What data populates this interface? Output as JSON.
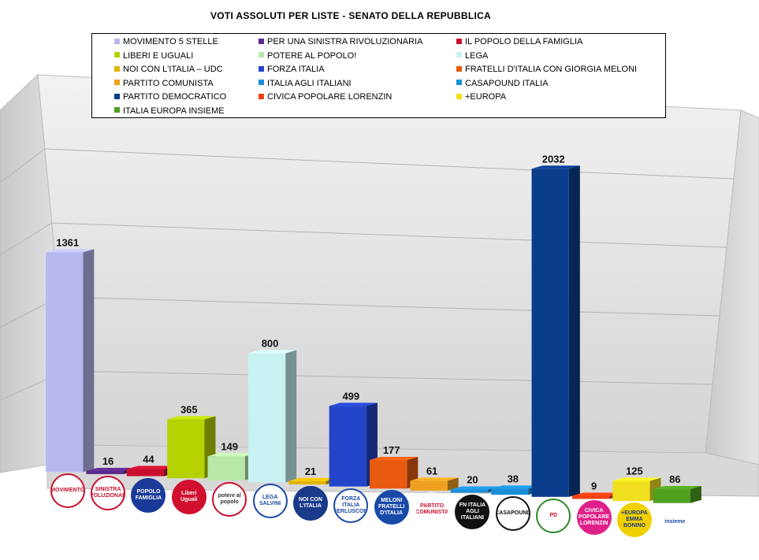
{
  "chart_data": {
    "type": "bar",
    "title": "VOTI ASSOLUTI PER LISTE - SENATO DELLA REPUBBLICA",
    "categories": [
      "MOVIMENTO 5 STELLE",
      "PER UNA SINISTRA RIVOLUZIONARIA",
      "IL POPOLO DELLA FAMIGLIA",
      "LIBERI E UGUALI",
      "POTERE AL POPOLO!",
      "LEGA",
      "NOI CON L'ITALIA – UDC",
      "FORZA ITALIA",
      "FRATELLI D'ITALIA CON GIORGIA MELONI",
      "PARTITO COMUNISTA",
      "ITALIA AGLI ITALIANI",
      "CASAPOUND ITALIA",
      "PARTITO DEMOCRATICO",
      "CIVICA POPOLARE LORENZIN",
      "+EUROPA",
      "ITALIA EUROPA INSIEME"
    ],
    "values": [
      1361,
      16,
      44,
      365,
      149,
      800,
      21,
      499,
      177,
      61,
      20,
      38,
      2032,
      9,
      125,
      86
    ],
    "colors": [
      "#b8b8f0",
      "#5a2a8a",
      "#c8102e",
      "#b5d200",
      "#b8e8a8",
      "#c8f2f2",
      "#e0b400",
      "#2244c8",
      "#e85a10",
      "#f0a020",
      "#1f8fd8",
      "#1a8fd8",
      "#0a3c8c",
      "#f04010",
      "#f0e020",
      "#50a020"
    ],
    "ylim": [
      0,
      2500
    ],
    "grid": true,
    "legend": "top"
  },
  "legend_items": [
    "MOVIMENTO 5 STELLE",
    "PER UNA SINISTRA RIVOLUZIONARIA",
    "IL POPOLO DELLA FAMIGLIA",
    "LIBERI E UGUALI",
    "POTERE AL POPOLO!",
    "LEGA",
    "NOI CON L'ITALIA – UDC",
    "FORZA ITALIA",
    "FRATELLI D'ITALIA CON GIORGIA MELONI",
    "PARTITO COMUNISTA",
    "ITALIA AGLI ITALIANI",
    "CASAPOUND ITALIA",
    "PARTITO DEMOCRATICO",
    "CIVICA POPOLARE LORENZIN",
    "+EUROPA",
    "ITALIA EUROPA INSIEME"
  ],
  "logos": [
    {
      "text": "MOVIMENTO",
      "bg": "#ffffff",
      "fg": "#c8102e",
      "border": "#c8102e"
    },
    {
      "text": "SINISTRA RIVOLUZIONARIA",
      "bg": "#ffffff",
      "fg": "#c8102e",
      "border": "#c8102e"
    },
    {
      "text": "POPOLO FAMIGLIA",
      "bg": "#1a3a9a",
      "fg": "#ffffff",
      "border": "#1a3a9a"
    },
    {
      "text": "Liberi Uguali",
      "bg": "#d0102e",
      "fg": "#ffffff",
      "border": "#d0102e"
    },
    {
      "text": "potere al popolo",
      "bg": "#ffffff",
      "fg": "#333333",
      "border": "#c8102e"
    },
    {
      "text": "LEGA SALVINI",
      "bg": "#ffffff",
      "fg": "#1a4aa8",
      "border": "#1a4aa8"
    },
    {
      "text": "NOI CON L'ITALIA",
      "bg": "#1a3a8a",
      "fg": "#ffffff",
      "border": "#1a3a8a"
    },
    {
      "text": "FORZA ITALIA BERLUSCONI",
      "bg": "#ffffff",
      "fg": "#1a4aa8",
      "border": "#1a4aa8"
    },
    {
      "text": "MELONI FRATELLI D'ITALIA",
      "bg": "#1a4aa8",
      "fg": "#ffffff",
      "border": "#1a4aa8"
    },
    {
      "text": "PARTITO COMUNISTA",
      "bg": "#ffffff",
      "fg": "#c8102e",
      "border": "#ffffff"
    },
    {
      "text": "FN ITALIA AGLI ITALIANI",
      "bg": "#111111",
      "fg": "#ffffff",
      "border": "#111111"
    },
    {
      "text": "CASAPOUND",
      "bg": "#ffffff",
      "fg": "#111111",
      "border": "#111111"
    },
    {
      "text": "PD",
      "bg": "#ffffff",
      "fg": "#c8102e",
      "border": "#2a8a2a"
    },
    {
      "text": "CIVICA POPOLARE LORENZIN",
      "bg": "#e0208a",
      "fg": "#ffffff",
      "border": "#e0208a"
    },
    {
      "text": "+EUROPA EMMA BONINO",
      "bg": "#f0d000",
      "fg": "#1a3a8a",
      "border": "#f0d000"
    },
    {
      "text": "insieme",
      "bg": "#ffffff",
      "fg": "#1a4aa8",
      "border": "#ffffff"
    }
  ]
}
